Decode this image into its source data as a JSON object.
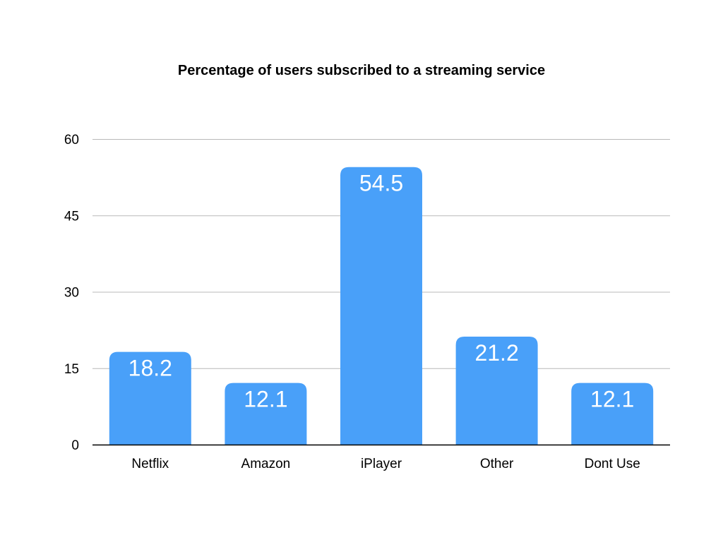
{
  "chart_data": {
    "type": "bar",
    "title": "Percentage of users subscribed to a streaming service",
    "xlabel": "",
    "ylabel": "",
    "categories": [
      "Netflix",
      "Amazon",
      "iPlayer",
      "Other",
      "Dont Use"
    ],
    "values": [
      18.2,
      12.1,
      54.5,
      21.2,
      12.1
    ],
    "value_labels": [
      "18.2",
      "12.1",
      "54.5",
      "21.2",
      "12.1"
    ],
    "ylim": [
      0,
      60
    ],
    "yticks": [
      0,
      15,
      30,
      45,
      60
    ],
    "ytick_labels": [
      "0",
      "15",
      "30",
      "45",
      "60"
    ],
    "grid": true,
    "legend": "none",
    "colors": {
      "bar": "#49a0f9",
      "grid": "#b8b8b8",
      "axis": "#000000",
      "value_label": "#ffffff"
    }
  }
}
